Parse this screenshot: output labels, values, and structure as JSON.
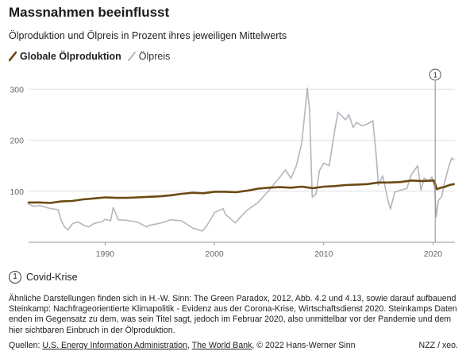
{
  "header": {
    "title": "Massnahmen beeinflusst",
    "subtitle": "Ölproduktion und Ölpreis in Prozent ihres jeweiligen Mittelwerts"
  },
  "colors": {
    "production": "#6b4a12",
    "price": "#b5b5bd",
    "axis": "#999999",
    "grid": "#e0e0e0",
    "marker": "#8a8a8a"
  },
  "chart_data": {
    "type": "line",
    "xlabel": "",
    "ylabel": "",
    "xlim": [
      1983,
      2022
    ],
    "ylim": [
      0,
      330
    ],
    "x_ticks": [
      "1990",
      "2000",
      "2010",
      "2020"
    ],
    "y_ticks": [
      "100",
      "200",
      "300"
    ],
    "grid": true,
    "legend_position": "top-left",
    "series": [
      {
        "name": "Globale Ölproduktion",
        "color": "#6b4a12",
        "points": [
          [
            1983,
            78
          ],
          [
            1984,
            78
          ],
          [
            1985,
            77
          ],
          [
            1986,
            80
          ],
          [
            1987,
            81
          ],
          [
            1988,
            84
          ],
          [
            1989,
            86
          ],
          [
            1990,
            88
          ],
          [
            1991,
            87
          ],
          [
            1992,
            87
          ],
          [
            1993,
            88
          ],
          [
            1994,
            89
          ],
          [
            1995,
            90
          ],
          [
            1996,
            92
          ],
          [
            1997,
            95
          ],
          [
            1998,
            97
          ],
          [
            1999,
            96
          ],
          [
            2000,
            99
          ],
          [
            2001,
            99
          ],
          [
            2002,
            98
          ],
          [
            2003,
            101
          ],
          [
            2004,
            105
          ],
          [
            2005,
            107
          ],
          [
            2006,
            108
          ],
          [
            2007,
            107
          ],
          [
            2008,
            109
          ],
          [
            2009,
            106
          ],
          [
            2010,
            109
          ],
          [
            2011,
            110
          ],
          [
            2012,
            112
          ],
          [
            2013,
            113
          ],
          [
            2014,
            114
          ],
          [
            2015,
            117
          ],
          [
            2016,
            117
          ],
          [
            2017,
            118
          ],
          [
            2018,
            121
          ],
          [
            2019,
            120
          ],
          [
            2020.1,
            121
          ],
          [
            2020.35,
            104
          ],
          [
            2020.7,
            107
          ],
          [
            2021,
            108
          ],
          [
            2021.5,
            112
          ],
          [
            2021.9,
            114
          ]
        ]
      },
      {
        "name": "Ölpreis",
        "color": "#b5b5bd",
        "points": [
          [
            1983,
            75
          ],
          [
            1983.5,
            70
          ],
          [
            1984,
            72
          ],
          [
            1984.5,
            69
          ],
          [
            1985,
            66
          ],
          [
            1985.7,
            64
          ],
          [
            1986,
            42
          ],
          [
            1986.3,
            30
          ],
          [
            1986.6,
            24
          ],
          [
            1987,
            36
          ],
          [
            1987.5,
            40
          ],
          [
            1988,
            34
          ],
          [
            1988.5,
            30
          ],
          [
            1989,
            37
          ],
          [
            1989.7,
            40
          ],
          [
            1990,
            45
          ],
          [
            1990.5,
            42
          ],
          [
            1990.75,
            68
          ],
          [
            1990.9,
            60
          ],
          [
            1991.2,
            44
          ],
          [
            1992,
            43
          ],
          [
            1993,
            39
          ],
          [
            1993.8,
            30
          ],
          [
            1994,
            33
          ],
          [
            1995,
            37
          ],
          [
            1996,
            44
          ],
          [
            1997,
            42
          ],
          [
            1998,
            28
          ],
          [
            1998.9,
            22
          ],
          [
            1999.3,
            32
          ],
          [
            1999.8,
            50
          ],
          [
            2000,
            58
          ],
          [
            2000.8,
            66
          ],
          [
            2001,
            55
          ],
          [
            2001.9,
            38
          ],
          [
            2002.5,
            52
          ],
          [
            2003,
            63
          ],
          [
            2004,
            78
          ],
          [
            2005,
            102
          ],
          [
            2006,
            128
          ],
          [
            2006.5,
            142
          ],
          [
            2007,
            125
          ],
          [
            2007.5,
            150
          ],
          [
            2008,
            195
          ],
          [
            2008.5,
            302
          ],
          [
            2008.7,
            260
          ],
          [
            2008.95,
            88
          ],
          [
            2009.3,
            95
          ],
          [
            2009.6,
            140
          ],
          [
            2010,
            155
          ],
          [
            2010.5,
            150
          ],
          [
            2011,
            218
          ],
          [
            2011.3,
            255
          ],
          [
            2012,
            240
          ],
          [
            2012.3,
            250
          ],
          [
            2012.7,
            225
          ],
          [
            2013,
            235
          ],
          [
            2013.5,
            228
          ],
          [
            2014,
            232
          ],
          [
            2014.5,
            238
          ],
          [
            2014.8,
            170
          ],
          [
            2015,
            112
          ],
          [
            2015.4,
            130
          ],
          [
            2015.9,
            80
          ],
          [
            2016.1,
            65
          ],
          [
            2016.5,
            98
          ],
          [
            2017,
            102
          ],
          [
            2017.6,
            105
          ],
          [
            2018,
            132
          ],
          [
            2018.6,
            150
          ],
          [
            2018.9,
            102
          ],
          [
            2019.2,
            126
          ],
          [
            2019.6,
            120
          ],
          [
            2019.9,
            128
          ],
          [
            2020.15,
            105
          ],
          [
            2020.3,
            50
          ],
          [
            2020.5,
            82
          ],
          [
            2020.8,
            90
          ],
          [
            2021,
            112
          ],
          [
            2021.4,
            145
          ],
          [
            2021.7,
            165
          ],
          [
            2021.9,
            162
          ]
        ]
      }
    ],
    "annotations": [
      {
        "x": 2020.2,
        "label": "1"
      }
    ]
  },
  "legend": {
    "production": "Globale Ölproduktion",
    "price": "Ölpreis"
  },
  "note": {
    "badge": "1",
    "text": "Covid-Krise"
  },
  "footer": {
    "text": "Ähnliche Darstellungen finden sich in H.-W. Sinn: The Green Paradox, 2012, Abb. 4.2 und 4.13, sowie darauf aufbauend Steinkamp: Nachfrageorientierte Klimapolitik - Evidenz aus der Corona-Krise, Wirtschaftsdienst 2020. Steinkamps Daten enden im Gegensatz zu dem, was sein Titel sagt, jedoch im Februar 2020, also unmittelbar vor der Pandemie und dem hier sichtbaren Einbruch in der Ölproduktion.",
    "sources_prefix": "Quellen: ",
    "source_1": "U.S. Energy Information Administration",
    "sep": ", ",
    "source_2": "The World Bank",
    "sources_suffix": ", © 2022 Hans-Werner Sinn",
    "credit": "NZZ / xeo."
  }
}
